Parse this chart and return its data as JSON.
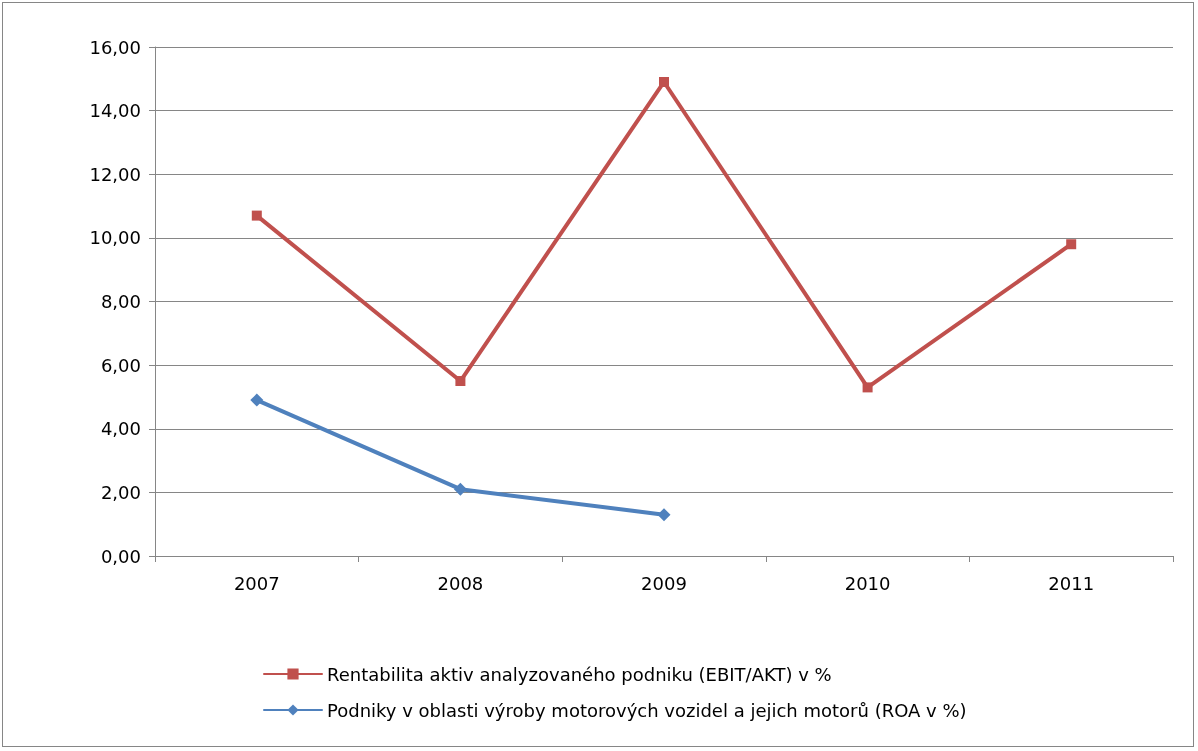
{
  "chart_data": {
    "type": "line",
    "categories": [
      "2007",
      "2008",
      "2009",
      "2010",
      "2011"
    ],
    "series": [
      {
        "name": "Rentabilita aktiv analyzovaného podniku (EBIT/AKT) v %",
        "color": "#c0504d",
        "marker": "square",
        "values": [
          10.7,
          5.5,
          14.9,
          5.3,
          9.8
        ]
      },
      {
        "name": "Podniky v oblasti výroby motorových vozidel a jejich motorů (ROA v %)",
        "color": "#4f81bd",
        "marker": "diamond",
        "values": [
          4.9,
          2.1,
          1.3,
          null,
          null
        ]
      }
    ],
    "ylim": [
      0,
      16
    ],
    "yticks": [
      {
        "value": 0,
        "label": "0,00"
      },
      {
        "value": 2,
        "label": "2,00"
      },
      {
        "value": 4,
        "label": "4,00"
      },
      {
        "value": 6,
        "label": "6,00"
      },
      {
        "value": 8,
        "label": "8,00"
      },
      {
        "value": 10,
        "label": "10,00"
      },
      {
        "value": 12,
        "label": "12,00"
      },
      {
        "value": 14,
        "label": "14,00"
      },
      {
        "value": 16,
        "label": "16,00"
      }
    ],
    "grid": "y",
    "legend": "bottom",
    "line_style": "solid"
  }
}
